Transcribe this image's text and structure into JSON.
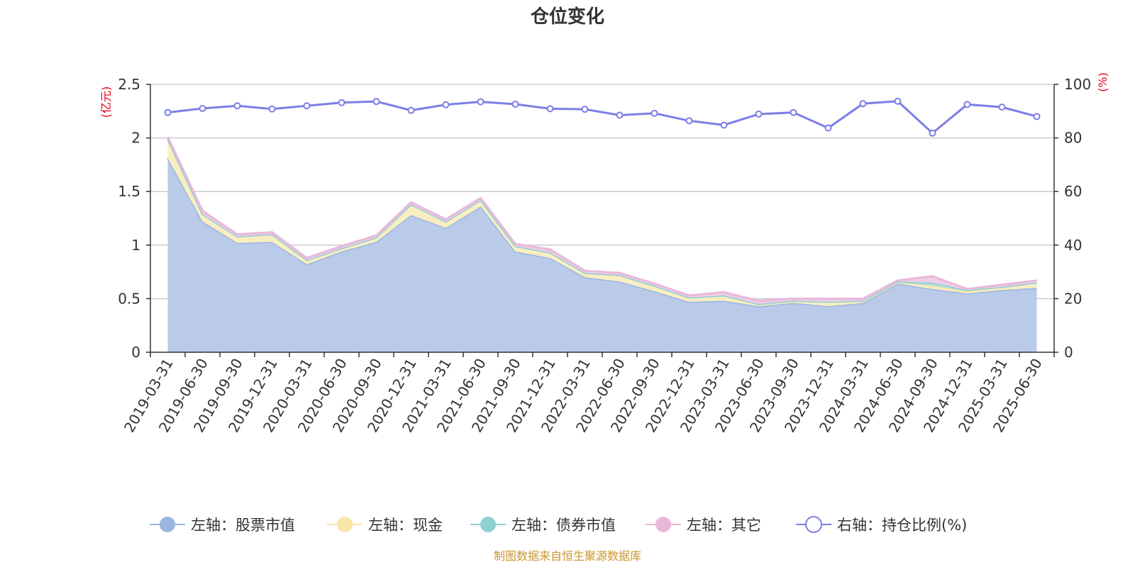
{
  "title": "仓位变化",
  "source_note": "制图数据来自恒生聚源数据库",
  "chart_data": {
    "type": "area",
    "title": "仓位变化",
    "left_axis": {
      "unit": "(亿元)",
      "ylim": [
        0,
        2.5
      ],
      "ticks": [
        "0",
        "0.5",
        "1",
        "1.5",
        "2",
        "2.5"
      ],
      "tick_values": [
        0,
        0.5,
        1,
        1.5,
        2,
        2.5
      ]
    },
    "right_axis": {
      "unit": "(%)",
      "ylim": [
        0,
        100
      ],
      "ticks": [
        "0",
        "20",
        "40",
        "60",
        "80",
        "100"
      ],
      "tick_values": [
        0,
        20,
        40,
        60,
        80,
        100
      ]
    },
    "grid": true,
    "legend_position": "bottom",
    "categories": [
      "2019-03-31",
      "2019-06-30",
      "2019-09-30",
      "2019-12-31",
      "2020-03-31",
      "2020-06-30",
      "2020-09-30",
      "2020-12-31",
      "2021-03-31",
      "2021-06-30",
      "2021-09-30",
      "2021-12-31",
      "2022-03-31",
      "2022-06-30",
      "2022-09-30",
      "2022-12-31",
      "2023-03-31",
      "2023-06-30",
      "2023-09-30",
      "2023-12-31",
      "2024-03-31",
      "2024-06-30",
      "2024-09-30",
      "2024-12-31",
      "2025-03-31",
      "2025-06-30"
    ],
    "series": [
      {
        "name": "左轴：股票市值",
        "axis": "left",
        "stacked": true,
        "color": "#9bb5e0",
        "values": [
          1.81,
          1.22,
          1.02,
          1.03,
          0.82,
          0.94,
          1.03,
          1.28,
          1.16,
          1.36,
          0.94,
          0.88,
          0.7,
          0.66,
          0.57,
          0.47,
          0.48,
          0.43,
          0.46,
          0.43,
          0.46,
          0.64,
          0.59,
          0.55,
          0.58,
          0.6
        ]
      },
      {
        "name": "左轴：现金",
        "axis": "left",
        "stacked": true,
        "color": "#f7e6a6",
        "values": [
          0.18,
          0.07,
          0.06,
          0.07,
          0.04,
          0.03,
          0.04,
          0.1,
          0.06,
          0.06,
          0.05,
          0.05,
          0.04,
          0.06,
          0.05,
          0.04,
          0.05,
          0.02,
          0.02,
          0.04,
          0.02,
          0.01,
          0.03,
          0.02,
          0.03,
          0.05
        ]
      },
      {
        "name": "左轴：债券市值",
        "axis": "left",
        "stacked": true,
        "color": "#8dd1d3",
        "values": [
          0,
          0,
          0,
          0,
          0,
          0,
          0,
          0,
          0,
          0,
          0,
          0,
          0,
          0,
          0,
          0,
          0,
          0,
          0,
          0,
          0,
          0.01,
          0.03,
          0.01,
          0,
          0
        ]
      },
      {
        "name": "左轴：其它",
        "axis": "left",
        "stacked": true,
        "color": "#e8b8db",
        "values": [
          0.02,
          0.03,
          0.02,
          0.02,
          0.02,
          0.02,
          0.02,
          0.02,
          0.02,
          0.02,
          0.02,
          0.03,
          0.02,
          0.02,
          0.02,
          0.02,
          0.03,
          0.03,
          0.02,
          0.03,
          0.02,
          0.01,
          0.06,
          0.01,
          0.02,
          0.02
        ]
      },
      {
        "name": "右轴：持仓比例(%)",
        "axis": "right",
        "stacked": false,
        "color": "#7b7fe6",
        "values": [
          89.5,
          91,
          92,
          90.8,
          92,
          93.2,
          93.6,
          90.3,
          92.4,
          93.5,
          92.6,
          90.9,
          90.7,
          88.5,
          89.2,
          86.4,
          84.8,
          88.9,
          89.5,
          83.7,
          92.8,
          93.7,
          81.8,
          92.5,
          91.5,
          88
        ]
      }
    ]
  }
}
